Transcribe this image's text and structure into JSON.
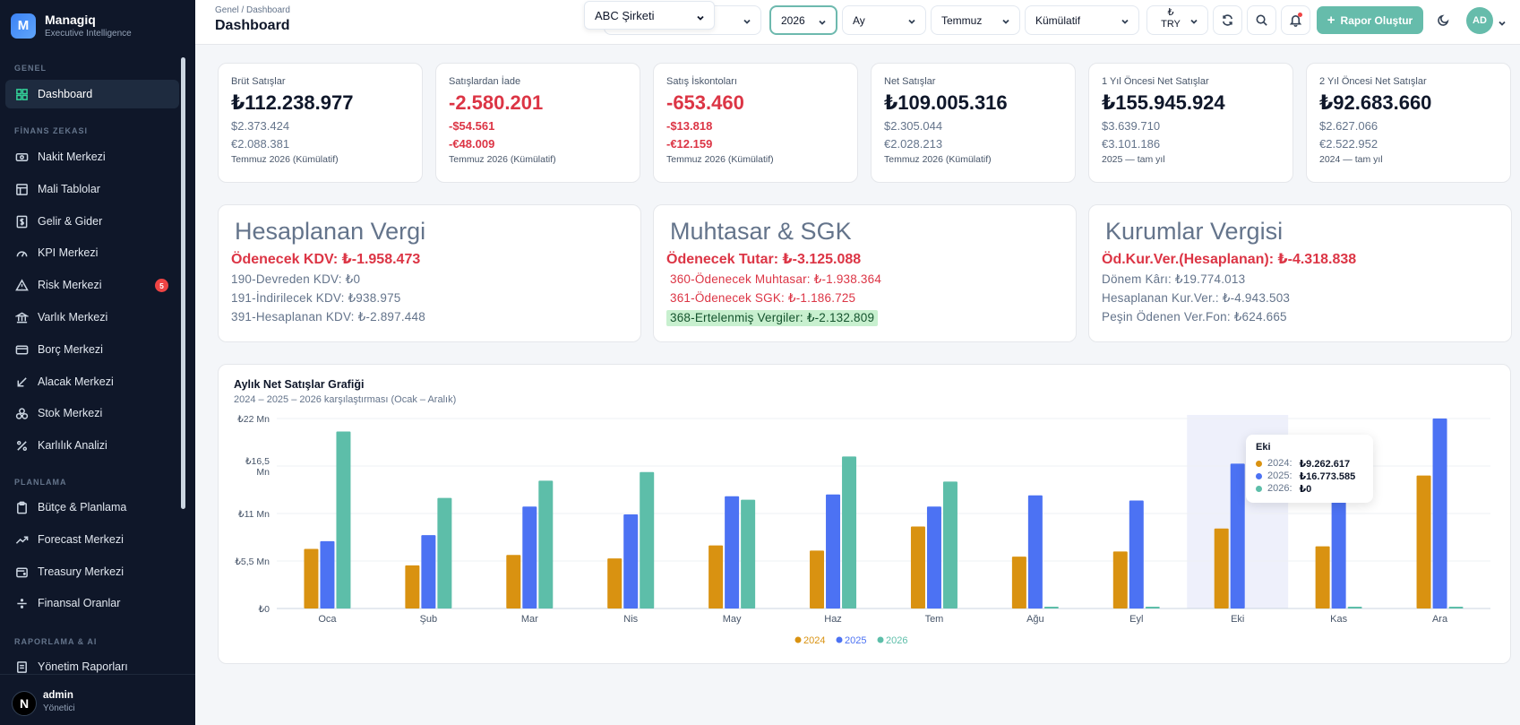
{
  "brand": {
    "logo": "M",
    "name": "Managiq",
    "subtitle": "Executive Intelligence"
  },
  "sidebar": {
    "sections": [
      "GENEL",
      "FİNANS ZEKASI",
      "PLANLAMA",
      "RAPORLAMA & AI"
    ],
    "items": [
      {
        "label": "Dashboard",
        "icon": "grid-icon",
        "active": true
      },
      {
        "label": "Nakit Merkezi",
        "icon": "cash-icon"
      },
      {
        "label": "Mali Tablolar",
        "icon": "table-icon"
      },
      {
        "label": "Gelir & Gider",
        "icon": "dollar-icon"
      },
      {
        "label": "KPI Merkezi",
        "icon": "gauge-icon"
      },
      {
        "label": "Risk Merkezi",
        "icon": "warning-icon",
        "badge": "5"
      },
      {
        "label": "Varlık Merkezi",
        "icon": "bank-icon"
      },
      {
        "label": "Borç Merkezi",
        "icon": "card-icon"
      },
      {
        "label": "Alacak Merkezi",
        "icon": "arrow-down-left-icon"
      },
      {
        "label": "Stok Merkezi",
        "icon": "boxes-icon"
      },
      {
        "label": "Karlılık Analizi",
        "icon": "percent-icon"
      },
      {
        "label": "Bütçe & Planlama",
        "icon": "clipboard-icon"
      },
      {
        "label": "Forecast Merkezi",
        "icon": "trend-icon"
      },
      {
        "label": "Treasury Merkezi",
        "icon": "wallet-icon"
      },
      {
        "label": "Finansal Oranlar",
        "icon": "divide-icon"
      },
      {
        "label": "Yönetim Raporları",
        "icon": "report-icon"
      }
    ],
    "user": {
      "initial": "N",
      "name": "admin",
      "role": "Yönetici"
    }
  },
  "header": {
    "breadcrumb": "Genel / Dashboard",
    "title": "Dashboard",
    "company": "ABC Şirketi",
    "year": "2026",
    "period_type": "Ay",
    "month": "Temmuz",
    "mode": "Kümülatif",
    "currency_symbol": "₺",
    "currency": "TRY",
    "cta": "Rapor Oluştur",
    "avatar": "AD"
  },
  "kpis": [
    {
      "label": "Brüt Satışlar",
      "main": "₺112.238.977",
      "usd": "$2.373.424",
      "eur": "€2.088.381",
      "note": "Temmuz 2026 (Kümülatif)",
      "neg": false
    },
    {
      "label": "Satışlardan İade",
      "main": "-2.580.201",
      "usd": "-$54.561",
      "eur": "-€48.009",
      "note": "Temmuz 2026 (Kümülatif)",
      "neg": true
    },
    {
      "label": "Satış İskontoları",
      "main": "-653.460",
      "usd": "-$13.818",
      "eur": "-€12.159",
      "note": "Temmuz 2026 (Kümülatif)",
      "neg": true
    },
    {
      "label": "Net Satışlar",
      "main": "₺109.005.316",
      "usd": "$2.305.044",
      "eur": "€2.028.213",
      "note": "Temmuz 2026 (Kümülatif)",
      "neg": false
    },
    {
      "label": "1 Yıl Öncesi Net Satışlar",
      "main": "₺155.945.924",
      "usd": "$3.639.710",
      "eur": "€3.101.186",
      "note": "2025 — tam yıl",
      "neg": false
    },
    {
      "label": "2 Yıl Öncesi Net Satışlar",
      "main": "₺92.683.660",
      "usd": "$2.627.066",
      "eur": "€2.522.952",
      "note": "2024 — tam yıl",
      "neg": false
    }
  ],
  "tax_cards": [
    {
      "title": "Hesaplanan Vergi",
      "main": "Ödenecek KDV: ₺-1.958.473",
      "lines": [
        {
          "text": "190-Devreden KDV: ₺0",
          "style": ""
        },
        {
          "text": "191-İndirilecek KDV: ₺938.975",
          "style": ""
        },
        {
          "text": "391-Hesaplanan KDV: ₺-2.897.448",
          "style": ""
        }
      ]
    },
    {
      "title": "Muhtasar & SGK",
      "main": "Ödenecek Tutar: ₺-3.125.088",
      "lines": [
        {
          "text": "360-Ödenecek Muhtasar: ₺-1.938.364",
          "style": "red"
        },
        {
          "text": "361-Ödenecek SGK: ₺-1.186.725",
          "style": "red"
        },
        {
          "text": "368-Ertelenmiş Vergiler: ₺-2.132.809",
          "style": "hl"
        }
      ]
    },
    {
      "title": "Kurumlar Vergisi",
      "main": "Öd.Kur.Ver.(Hesaplanan): ₺-4.318.838",
      "lines": [
        {
          "text": "Dönem Kârı: ₺19.774.013",
          "style": ""
        },
        {
          "text": "Hesaplanan Kur.Ver.: ₺-4.943.503",
          "style": ""
        },
        {
          "text": "Peşin Ödenen Ver.Fon: ₺624.665",
          "style": ""
        }
      ]
    }
  ],
  "chart_data": {
    "type": "bar",
    "title": "Aylık Net Satışlar Grafiği",
    "subtitle": "2024 – 2025 – 2026 karşılaştırması (Ocak – Aralık)",
    "categories": [
      "Oca",
      "Şub",
      "Mar",
      "Nis",
      "May",
      "Haz",
      "Tem",
      "Ağu",
      "Eyl",
      "Eki",
      "Kas",
      "Ara"
    ],
    "series": [
      {
        "name": "2024",
        "color": "#d99211",
        "values": [
          6.9,
          5.0,
          6.2,
          5.8,
          7.3,
          6.7,
          9.5,
          6.0,
          6.6,
          9.26,
          7.2,
          15.4
        ]
      },
      {
        "name": "2025",
        "color": "#4c72f3",
        "values": [
          7.8,
          8.5,
          11.8,
          10.9,
          13.0,
          13.2,
          11.8,
          13.1,
          12.5,
          16.77,
          13.5,
          22.0
        ]
      },
      {
        "name": "2026",
        "color": "#5dbea9",
        "values": [
          20.5,
          12.8,
          14.8,
          15.8,
          12.6,
          17.6,
          14.7,
          0.2,
          0.2,
          0,
          0.2,
          0.2
        ]
      }
    ],
    "ylim": [
      0,
      22
    ],
    "yticks": [
      {
        "value": 0,
        "label": "₺0"
      },
      {
        "value": 5.5,
        "label": "₺5,5 Mn"
      },
      {
        "value": 11,
        "label": "₺11 Mn"
      },
      {
        "value": 16.5,
        "label": "₺16,5 Mn"
      },
      {
        "value": 22,
        "label": "₺22 Mn"
      }
    ],
    "grid": true,
    "legend": "bottom-center",
    "highlight_category": "Eki",
    "tooltip": {
      "title": "Eki",
      "rows": [
        {
          "label": "2024:",
          "value": "₺9.262.617",
          "color": "#d99211"
        },
        {
          "label": "2025:",
          "value": "₺16.773.585",
          "color": "#4c72f3"
        },
        {
          "label": "2026:",
          "value": "₺0",
          "color": "#5dbea9"
        }
      ]
    }
  }
}
